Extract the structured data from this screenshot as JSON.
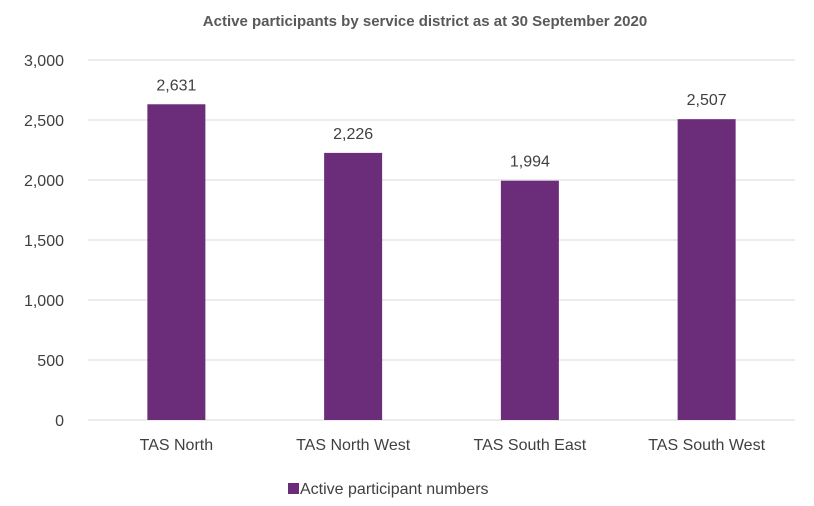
{
  "chart_data": {
    "type": "bar",
    "title": "Active participants by service district as at 30 September 2020",
    "categories": [
      "TAS North",
      "TAS North West",
      "TAS South East",
      "TAS South West"
    ],
    "series": [
      {
        "name": "Active participant numbers",
        "values": [
          2631,
          2226,
          1994,
          2507
        ],
        "value_labels": [
          "2,631",
          "2,226",
          "1,994",
          "2,507"
        ],
        "color": "#6b2c7a"
      }
    ],
    "xlabel": "",
    "ylabel": "",
    "ylim": [
      0,
      3000
    ],
    "yticks": [
      0,
      500,
      1000,
      1500,
      2000,
      2500,
      3000
    ],
    "ytick_labels": [
      "0",
      "500",
      "1,000",
      "1,500",
      "2,000",
      "2,500",
      "3,000"
    ],
    "grid": true,
    "legend_position": "bottom"
  }
}
